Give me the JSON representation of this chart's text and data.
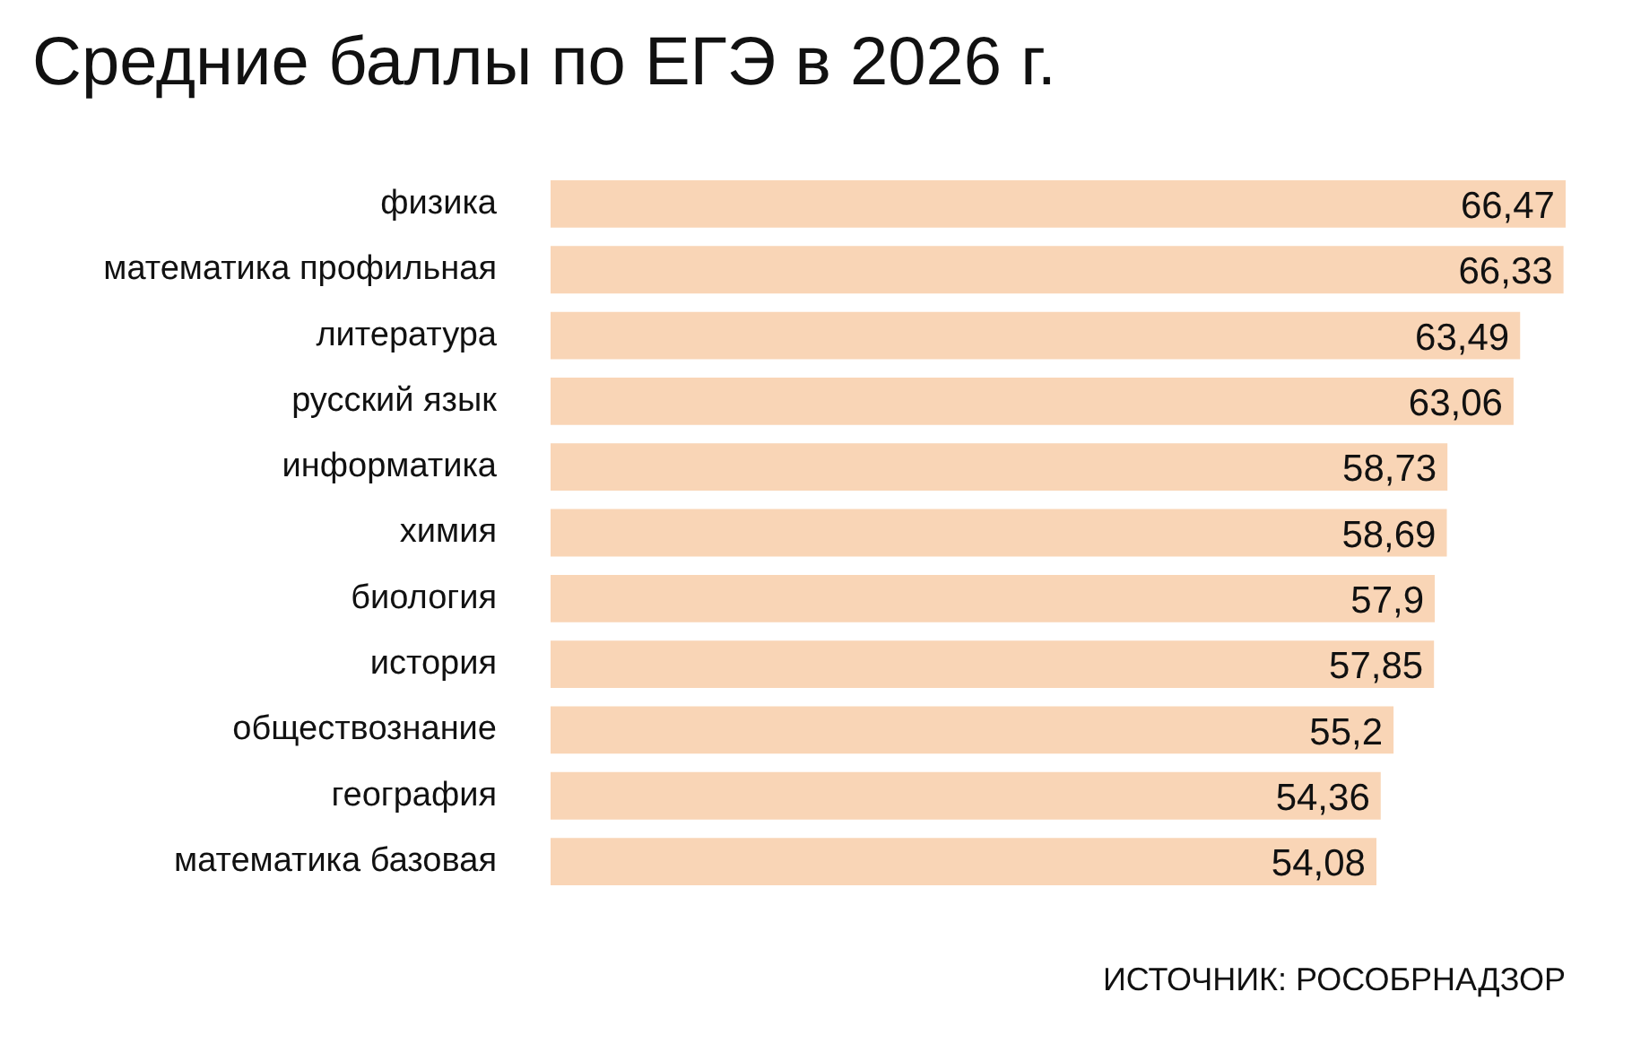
{
  "chart_data": {
    "type": "bar",
    "orientation": "horizontal",
    "title": "Средние баллы по ЕГЭ в 2026 г.",
    "categories": [
      "физика",
      "математика профильная",
      "литература",
      "русский язык",
      "информатика",
      "химия",
      "биология",
      "история",
      "обществознание",
      "география",
      "математика базовая"
    ],
    "values": [
      66.47,
      66.33,
      63.49,
      63.06,
      58.73,
      58.69,
      57.9,
      57.85,
      55.2,
      54.36,
      54.08
    ],
    "value_labels": [
      "66,47",
      "66,33",
      "63,49",
      "63,06",
      "58,73",
      "58,69",
      "57,9",
      "57,85",
      "55,2",
      "54,36",
      "54,08"
    ],
    "color": "#f9d5b6",
    "annotations": [
      "ИСТОЧНИК: РОСОБРНАДЗОР"
    ]
  }
}
